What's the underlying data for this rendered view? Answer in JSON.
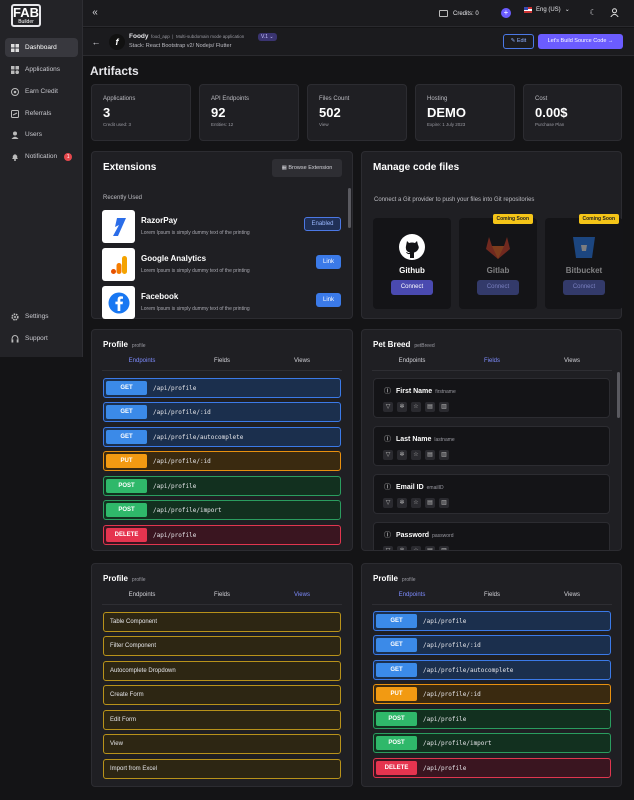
{
  "brand": {
    "logo": "FAB",
    "logo_sub": "Builder"
  },
  "sidebar": {
    "items": [
      {
        "label": "Dashboard",
        "icon": "grid-icon"
      },
      {
        "label": "Applications",
        "icon": "apps-icon"
      },
      {
        "label": "Earn Credit",
        "icon": "coin-icon"
      },
      {
        "label": "Referrals",
        "icon": "share-icon"
      },
      {
        "label": "Users",
        "icon": "user-icon"
      },
      {
        "label": "Notification",
        "icon": "bell-icon",
        "badge": "1"
      },
      {
        "label": "Settings",
        "icon": "gear-icon"
      },
      {
        "label": "Support",
        "icon": "headset-icon"
      }
    ]
  },
  "topbar": {
    "credits": "Credits: 0",
    "language": "Eng (US)"
  },
  "project": {
    "name": "Foody",
    "slug": "food_app",
    "type": "Multi-subdomain mode application",
    "version": "V.1",
    "stack": "Stack: React Bootstrap v2/ Nodejs/ Flutter",
    "edit_label": "Edit",
    "build_label": "Let's Build Source Code →"
  },
  "artifacts": {
    "title": "Artifacts",
    "stats": [
      {
        "label": "Applications",
        "value": "3",
        "sub": "Credit used: 3"
      },
      {
        "label": "API Endpoints",
        "value": "92",
        "sub": "Entities: 12"
      },
      {
        "label": "Files Count",
        "value": "502",
        "sub": "View"
      },
      {
        "label": "Hosting",
        "value": "DEMO",
        "sub": "Expire: 1 July 2023"
      },
      {
        "label": "Cost",
        "value": "0.00$",
        "sub": "Purchase Plan"
      }
    ]
  },
  "extensions": {
    "title": "Extensions",
    "browse_label": "Browse Extension",
    "recent_label": "Recently Used",
    "items": [
      {
        "name": "RazorPay",
        "desc": "Lorem Ipsum is simply dummy text of the printing",
        "button": "Enabled"
      },
      {
        "name": "Google Analytics",
        "desc": "Lorem Ipsum is simply dummy text of the printing",
        "button": "Link"
      },
      {
        "name": "Facebook",
        "desc": "Lorem Ipsum is simply dummy text of the printing",
        "button": "Link"
      }
    ]
  },
  "code_files": {
    "title": "Manage code files",
    "desc": "Connect a Git provider to push your files into Git repositories",
    "providers": [
      {
        "name": "Github",
        "button": "Connect",
        "badge": ""
      },
      {
        "name": "Gitlab",
        "button": "Connect",
        "badge": "Coming Soon"
      },
      {
        "name": "Bitbucket",
        "button": "Connect",
        "badge": "Coming Soon"
      }
    ]
  },
  "tabs": {
    "endpoints": "Endpoints",
    "fields": "Fields",
    "views": "Views"
  },
  "profile": {
    "title": "Profile",
    "tag": "profile",
    "endpoints": [
      {
        "method": "GET",
        "path": "/api/profile"
      },
      {
        "method": "GET",
        "path": "/api/profile/:id"
      },
      {
        "method": "GET",
        "path": "/api/profile/autocomplete"
      },
      {
        "method": "PUT",
        "path": "/api/profile/:id"
      },
      {
        "method": "POST",
        "path": "/api/profile"
      },
      {
        "method": "POST",
        "path": "/api/profile/import"
      },
      {
        "method": "DELETE",
        "path": "/api/profile"
      }
    ],
    "views": [
      "Table Component",
      "Filter Component",
      "Autocomplete Dropdown",
      "Create Form",
      "Edit Form",
      "View",
      "Import from Excel"
    ]
  },
  "petbreed": {
    "title": "Pet Breed",
    "tag": "petBreed",
    "fields": [
      {
        "name": "First Name",
        "key": "firstname"
      },
      {
        "name": "Last Name",
        "key": "lastname"
      },
      {
        "name": "Email ID",
        "key": "emailID"
      },
      {
        "name": "Password",
        "key": "password"
      }
    ]
  }
}
